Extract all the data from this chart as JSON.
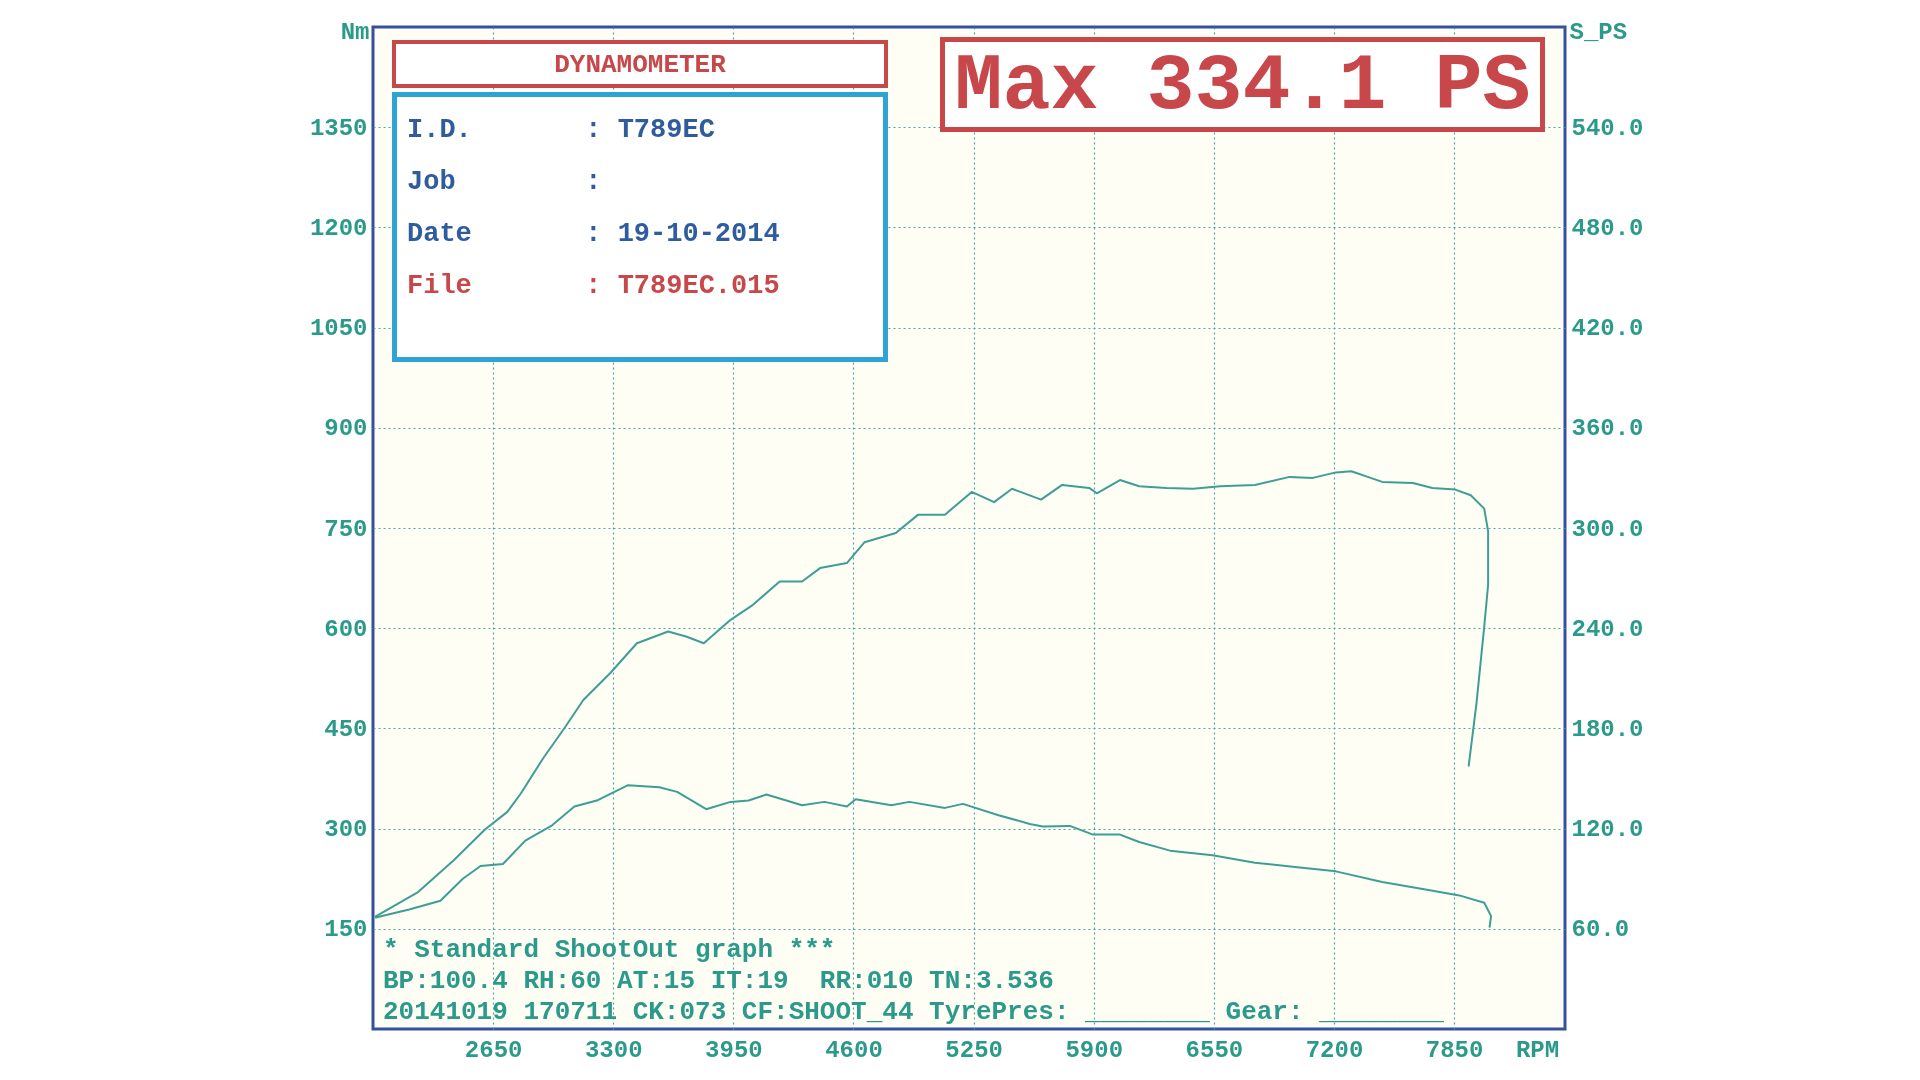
{
  "chart_data": {
    "type": "line",
    "title": "DYNAMOMETER",
    "xlabel": "RPM",
    "ylabel": "Nm",
    "y2label": "S_PS",
    "annotations": [
      "Max 334.1 PS",
      "I.D.       : T789EC",
      "Job        :",
      "Date       : 19-10-2014",
      "File       : T789EC.015",
      "* Standard ShootOut graph ***",
      "BP:100.4 RH:60 AT:15 IT:19  RR:010 TN:3.536",
      "20141019 170711 CK:073 CF:SHOOT_44 TyrePres: ________ Gear: ________"
    ],
    "xlim": [
      2000,
      8450
    ],
    "xticks": [
      2650,
      3300,
      3950,
      4600,
      5250,
      5900,
      6550,
      7200,
      7850
    ],
    "ylim": [
      0,
      1500
    ],
    "yticks": [
      150,
      300,
      450,
      600,
      750,
      900,
      1050,
      1200,
      1350
    ],
    "y2lim": [
      0,
      600
    ],
    "y2ticks": [
      {
        "value": 60,
        "label": "60.0"
      },
      {
        "value": 120,
        "label": "120.0"
      },
      {
        "value": 180,
        "label": "180.0"
      },
      {
        "value": 240,
        "label": "240.0"
      },
      {
        "value": 300,
        "label": "300.0"
      },
      {
        "value": 360,
        "label": "360.0"
      },
      {
        "value": 420,
        "label": "420.0"
      },
      {
        "value": 480,
        "label": "480.0"
      },
      {
        "value": 540,
        "label": "540.0"
      }
    ],
    "grid": true,
    "series": [
      {
        "color": "#3e9e96",
        "axis": "y",
        "x": [
          2015,
          2196,
          2365,
          2486,
          2582,
          2703,
          2824,
          2969,
          3090,
          3211,
          3380,
          3549,
          3646,
          3803,
          3935,
          4032,
          4129,
          4322,
          4443,
          4564,
          4612,
          4805,
          4902,
          5095,
          5192,
          5385,
          5554,
          5625,
          5771,
          5896,
          6042,
          6146,
          6313,
          6542,
          6772,
          7001,
          7210,
          7461,
          7711,
          7878,
          8013,
          8050,
          8042
        ],
        "values": [
          167,
          179,
          192,
          225,
          244,
          247,
          282,
          305,
          333,
          342,
          365,
          362,
          355,
          329,
          340,
          342,
          351,
          335,
          340,
          333,
          344,
          335,
          340,
          331,
          337,
          320,
          307,
          303,
          304,
          291,
          291,
          280,
          267,
          260,
          249,
          242,
          236,
          220,
          208,
          200,
          189,
          169,
          153
        ]
      },
      {
        "color": "#3e9e96",
        "axis": "y2",
        "x": [
          2015,
          2244,
          2437,
          2606,
          2727,
          2800,
          2920,
          3041,
          3138,
          3283,
          3428,
          3597,
          3694,
          3790,
          3935,
          4056,
          4201,
          4322,
          4419,
          4564,
          4660,
          4829,
          4950,
          5095,
          5240,
          5361,
          5458,
          5615,
          5729,
          5875,
          5917,
          6042,
          6146,
          6292,
          6438,
          6584,
          6772,
          6960,
          7085,
          7210,
          7294,
          7398,
          7461,
          7627,
          7732,
          7856,
          7940,
          8013,
          8034,
          8034,
          8013,
          7971,
          7929
        ],
        "values": [
          67.5,
          82,
          101,
          119.5,
          130,
          141,
          162,
          181,
          197,
          213,
          231,
          238,
          235,
          231,
          245,
          254,
          268,
          268,
          276,
          279,
          291.5,
          297,
          308,
          308,
          321.6,
          315.5,
          323.5,
          317,
          325.8,
          324,
          320.8,
          328.7,
          325,
          324,
          323.5,
          325,
          325.8,
          330.6,
          330,
          333.3,
          334,
          330,
          327.6,
          327,
          324,
          323,
          319.6,
          311.6,
          298,
          266,
          241,
          195,
          157.7
        ]
      }
    ]
  }
}
